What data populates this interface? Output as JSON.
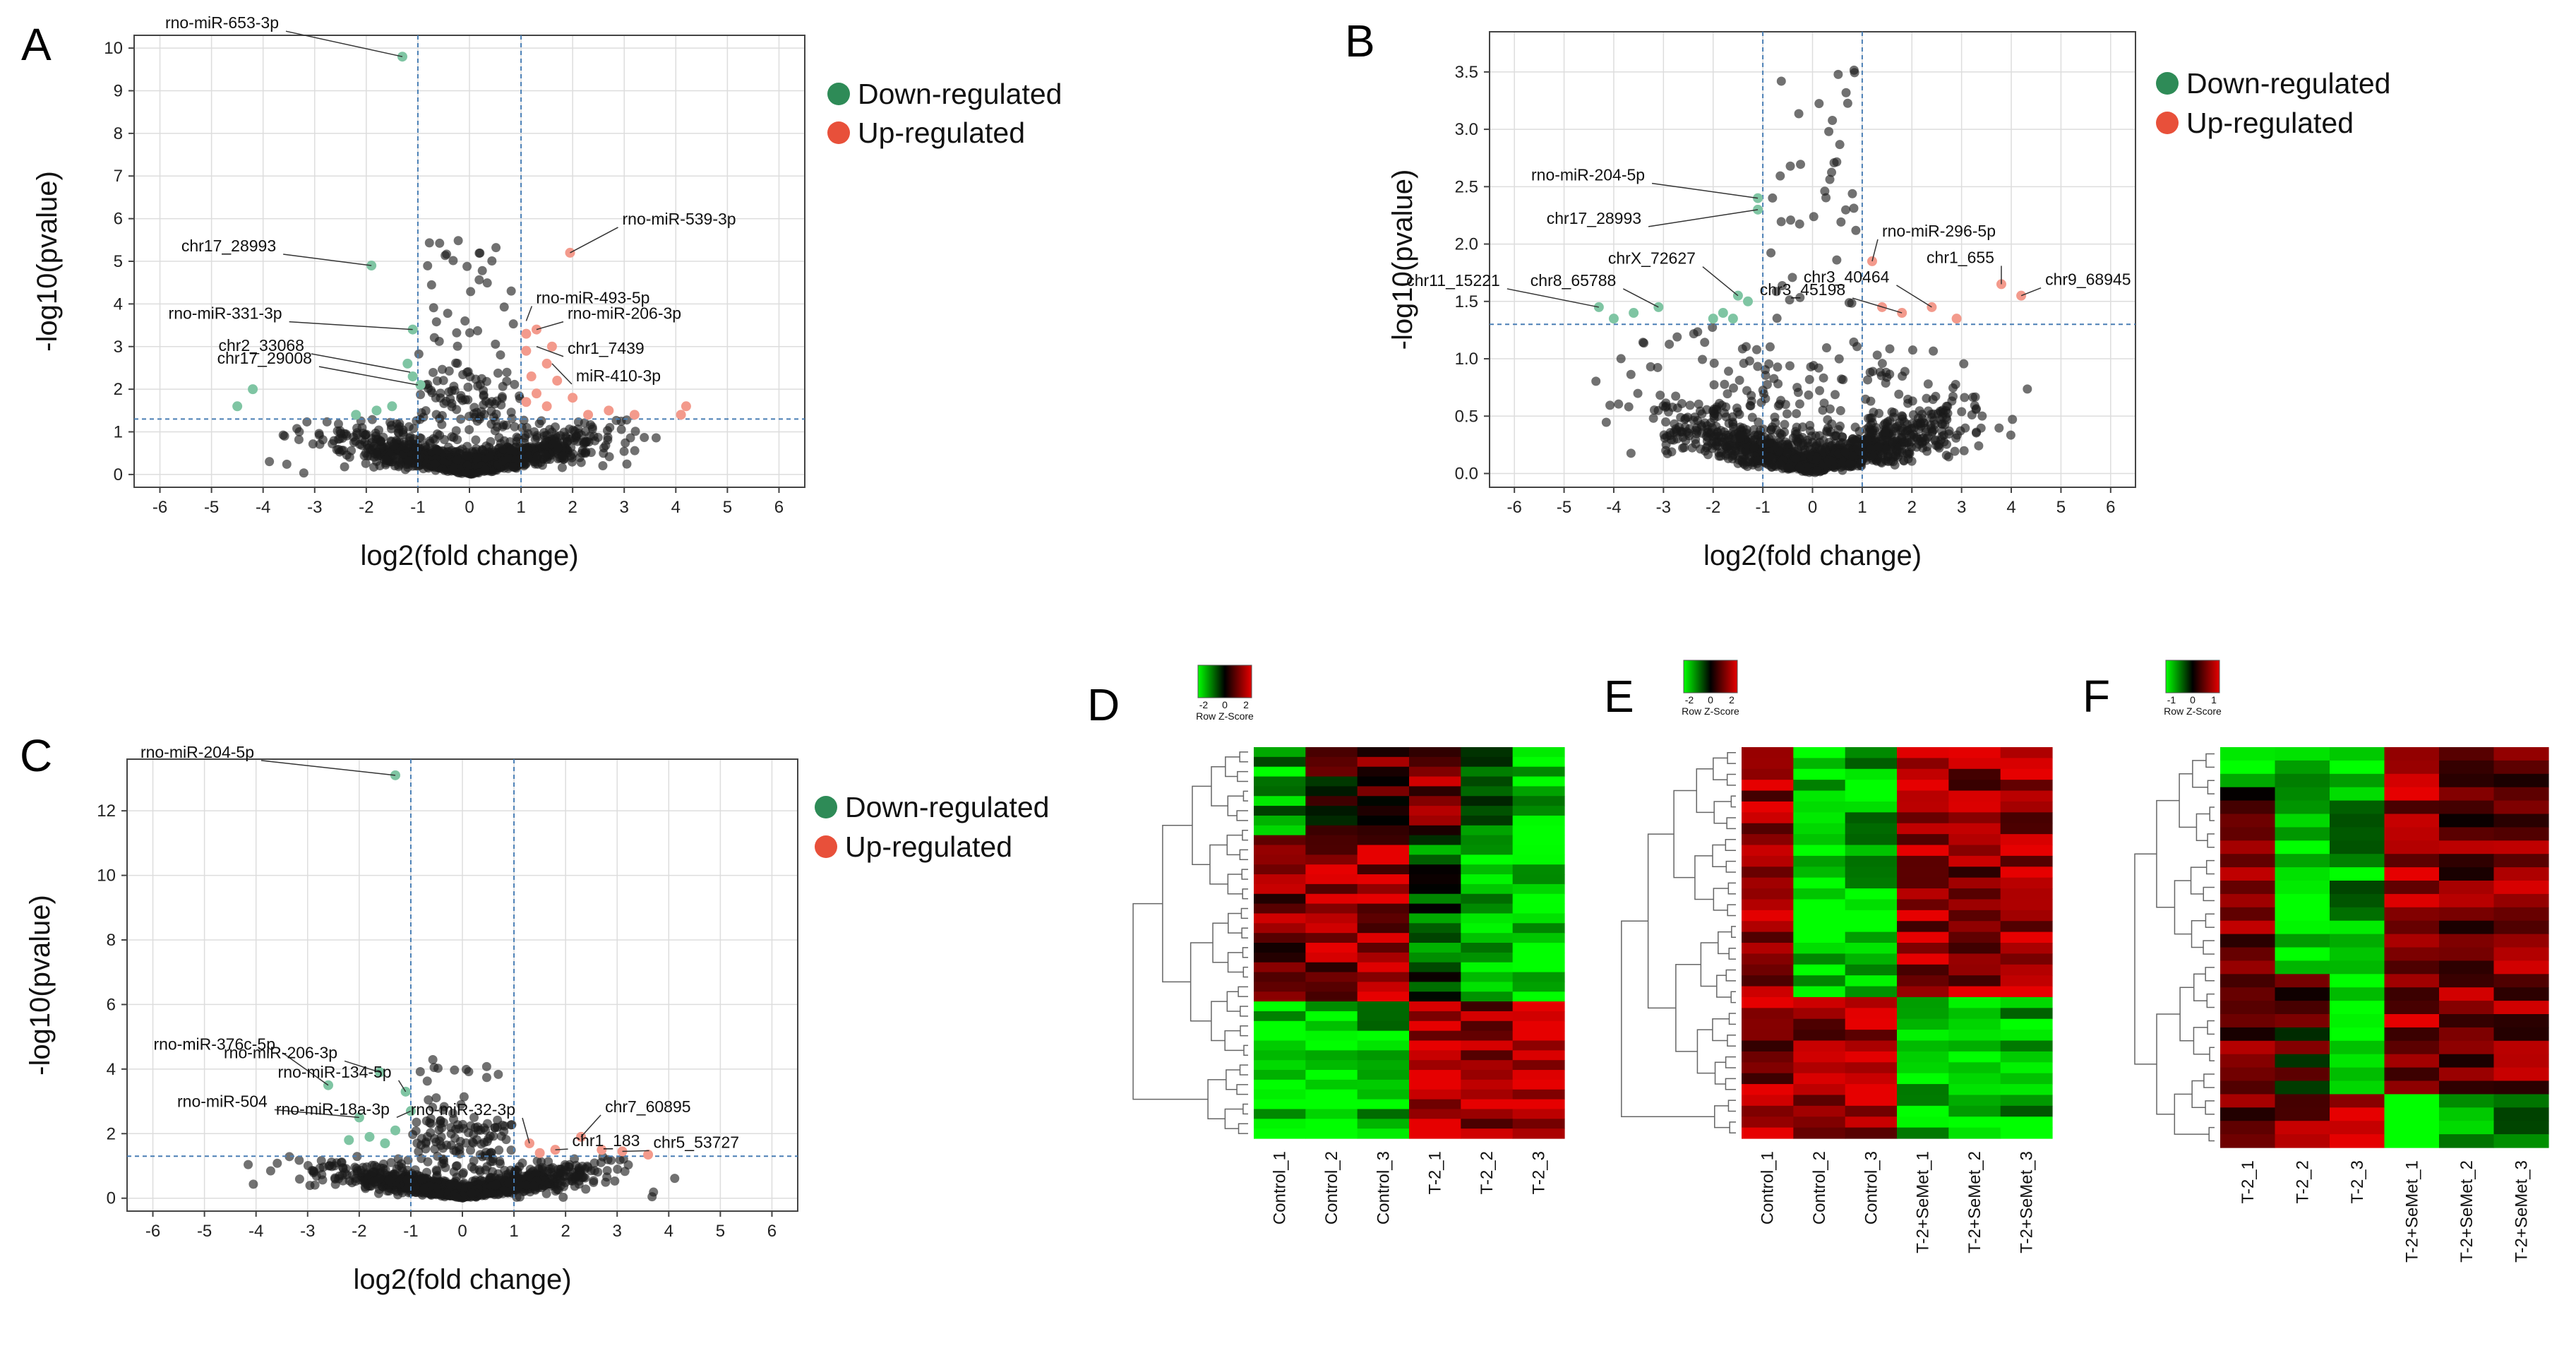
{
  "colors": {
    "down": "#2e8b57",
    "up": "#e8503a",
    "down_point": "#7fc5a3",
    "up_point": "#f39a8c",
    "neutral": "#1a1a1a",
    "grid": "#dddddd",
    "threshold": "#4a7fb5"
  },
  "legend": {
    "down": "Down-regulated",
    "up": "Up-regulated"
  },
  "chart_data": [
    {
      "panel": "A",
      "type": "scatter",
      "xlabel": "log2(fold change)",
      "ylabel": "-log10(pvalue)",
      "xlim": [
        -6.5,
        6.5
      ],
      "ylim": [
        -0.3,
        10.3
      ],
      "xticks": [
        -6,
        -5,
        -4,
        -3,
        -2,
        -1,
        0,
        1,
        2,
        3,
        4,
        5,
        6
      ],
      "yticks": [
        0,
        1,
        2,
        3,
        4,
        5,
        6,
        7,
        8,
        9,
        10
      ],
      "thresholds": {
        "x": [
          -1,
          1
        ],
        "y": 1.3
      },
      "down_points": [
        [
          -1.3,
          9.8
        ],
        [
          -1.9,
          4.9
        ],
        [
          -4.2,
          2.0
        ],
        [
          -4.5,
          1.6
        ],
        [
          -1.1,
          3.4
        ],
        [
          -1.2,
          2.6
        ],
        [
          -1.1,
          2.3
        ],
        [
          -0.95,
          2.1
        ],
        [
          -1.5,
          1.6
        ],
        [
          -1.8,
          1.5
        ],
        [
          -2.2,
          1.4
        ]
      ],
      "up_points": [
        [
          1.95,
          5.2
        ],
        [
          1.1,
          3.3
        ],
        [
          1.1,
          2.9
        ],
        [
          1.3,
          3.4
        ],
        [
          1.6,
          3.0
        ],
        [
          1.5,
          2.6
        ],
        [
          1.2,
          2.3
        ],
        [
          1.7,
          2.2
        ],
        [
          1.3,
          1.9
        ],
        [
          2.0,
          1.8
        ],
        [
          1.1,
          1.7
        ],
        [
          1.5,
          1.6
        ],
        [
          2.3,
          1.4
        ],
        [
          2.7,
          1.5
        ],
        [
          3.2,
          1.4
        ],
        [
          4.1,
          1.4
        ],
        [
          4.2,
          1.6
        ]
      ],
      "labels": [
        {
          "text": "rno-miR-653-3p",
          "x": -1.3,
          "y": 9.8
        },
        {
          "text": "chr17_28993",
          "x": -1.9,
          "y": 4.9
        },
        {
          "text": "rno-miR-331-3p",
          "x": -1.1,
          "y": 3.4
        },
        {
          "text": "chr2_33068",
          "x": -1.15,
          "y": 2.4
        },
        {
          "text": "chr17_29008",
          "x": -1.0,
          "y": 2.1
        },
        {
          "text": "rno-miR-539-3p",
          "x": 1.95,
          "y": 5.2
        },
        {
          "text": "rno-miR-493-5p",
          "x": 1.1,
          "y": 3.6
        },
        {
          "text": "rno-miR-206-3p",
          "x": 1.3,
          "y": 3.4
        },
        {
          "text": "chr1_7439",
          "x": 1.3,
          "y": 3.0
        },
        {
          "text": "miR-410-3p",
          "x": 1.6,
          "y": 2.6
        }
      ]
    },
    {
      "panel": "B",
      "type": "scatter",
      "xlabel": "log2(fold change)",
      "ylabel": "-log10(pvalue)",
      "xlim": [
        -6.5,
        6.5
      ],
      "ylim": [
        -0.12,
        3.85
      ],
      "xticks": [
        -6,
        -5,
        -4,
        -3,
        -2,
        -1,
        0,
        1,
        2,
        3,
        4,
        5,
        6
      ],
      "yticks": [
        0.0,
        0.5,
        1.0,
        1.5,
        2.0,
        2.5,
        3.0,
        3.5
      ],
      "thresholds": {
        "x": [
          -1,
          1
        ],
        "y": 1.3
      },
      "down_points": [
        [
          -1.1,
          2.4
        ],
        [
          -1.1,
          2.3
        ],
        [
          -4.3,
          1.45
        ],
        [
          -3.1,
          1.45
        ],
        [
          -4.0,
          1.35
        ],
        [
          -1.5,
          1.55
        ],
        [
          -1.3,
          1.5
        ],
        [
          -1.8,
          1.4
        ],
        [
          -1.6,
          1.35
        ],
        [
          -2.0,
          1.35
        ],
        [
          -3.6,
          1.4
        ]
      ],
      "up_points": [
        [
          1.2,
          1.85
        ],
        [
          1.8,
          1.4
        ],
        [
          2.4,
          1.45
        ],
        [
          3.8,
          1.65
        ],
        [
          4.2,
          1.55
        ],
        [
          2.9,
          1.35
        ],
        [
          1.4,
          1.45
        ]
      ],
      "labels": [
        {
          "text": "rno-miR-204-5p",
          "x": -1.1,
          "y": 2.4
        },
        {
          "text": "chr17_28993",
          "x": -1.1,
          "y": 2.3
        },
        {
          "text": "chr11_15221",
          "x": -4.3,
          "y": 1.45
        },
        {
          "text": "chr8_65788",
          "x": -3.1,
          "y": 1.45
        },
        {
          "text": "chrX_72627",
          "x": -1.5,
          "y": 1.55
        },
        {
          "text": "rno-miR-296-5p",
          "x": 1.2,
          "y": 1.85
        },
        {
          "text": "chr3_40464",
          "x": 2.4,
          "y": 1.45
        },
        {
          "text": "chr3_45198",
          "x": 1.8,
          "y": 1.4
        },
        {
          "text": "chr1_655",
          "x": 3.8,
          "y": 1.65
        },
        {
          "text": "chr9_68945",
          "x": 4.2,
          "y": 1.55
        }
      ]
    },
    {
      "panel": "C",
      "type": "scatter",
      "xlabel": "log2(fold change)",
      "ylabel": "-log10(pvalue)",
      "xlim": [
        -6.5,
        6.5
      ],
      "ylim": [
        -0.4,
        13.6
      ],
      "xticks": [
        -6,
        -5,
        -4,
        -3,
        -2,
        -1,
        0,
        1,
        2,
        3,
        4,
        5,
        6
      ],
      "yticks": [
        0,
        2,
        4,
        6,
        8,
        10,
        12
      ],
      "thresholds": {
        "x": [
          -1,
          1
        ],
        "y": 1.3
      },
      "down_points": [
        [
          -1.3,
          13.1
        ],
        [
          -2.6,
          3.5
        ],
        [
          -1.6,
          3.9
        ],
        [
          -1.1,
          3.3
        ],
        [
          -2.0,
          2.5
        ],
        [
          -1.8,
          1.9
        ],
        [
          -2.2,
          1.8
        ],
        [
          -1.5,
          1.7
        ],
        [
          -1.3,
          2.1
        ],
        [
          -1.0,
          2.7
        ]
      ],
      "up_points": [
        [
          1.3,
          1.7
        ],
        [
          2.3,
          1.9
        ],
        [
          3.1,
          1.45
        ],
        [
          1.8,
          1.5
        ],
        [
          3.6,
          1.35
        ],
        [
          1.5,
          1.4
        ],
        [
          2.7,
          1.5
        ]
      ],
      "labels": [
        {
          "text": "rno-miR-204-5p",
          "x": -1.3,
          "y": 13.1
        },
        {
          "text": "rno-miR-376c-5p",
          "x": -2.6,
          "y": 3.5
        },
        {
          "text": "rno-miR-206-3p",
          "x": -1.6,
          "y": 3.9
        },
        {
          "text": "rno-miR-134-5p",
          "x": -1.1,
          "y": 3.3
        },
        {
          "text": "rno-miR-504",
          "x": -2.0,
          "y": 2.5
        },
        {
          "text": "rno-miR-18a-3p",
          "x": -1.0,
          "y": 2.7
        },
        {
          "text": "rno-miR-32-3p",
          "x": 1.3,
          "y": 1.7
        },
        {
          "text": "chr7_60895",
          "x": 2.3,
          "y": 1.9
        },
        {
          "text": "chr1_183",
          "x": 1.8,
          "y": 1.5
        },
        {
          "text": "chr5_53727",
          "x": 3.1,
          "y": 1.45
        }
      ]
    },
    {
      "panel": "D",
      "type": "heatmap",
      "colorbar_title": "Row Z-Score",
      "colorbar_ticks": [
        "-2",
        "0",
        "2"
      ],
      "columns": [
        "Control_1",
        "Control_2",
        "Control_3",
        "T-2_1",
        "T-2_2",
        "T-2_3"
      ]
    },
    {
      "panel": "E",
      "type": "heatmap",
      "colorbar_title": "Row Z-Score",
      "colorbar_ticks": [
        "-2",
        "0",
        "2"
      ],
      "columns": [
        "Control_1",
        "Control_2",
        "Control_3",
        "T-2+SeMet_1",
        "T-2+SeMet_2",
        "T-2+SeMet_3"
      ]
    },
    {
      "panel": "F",
      "type": "heatmap",
      "colorbar_title": "Row Z-Score",
      "colorbar_ticks": [
        "-1",
        "0",
        "1"
      ],
      "columns": [
        "T-2_1",
        "T-2_2",
        "T-2_3",
        "T-2+SeMet_1",
        "T-2+SeMet_2",
        "T-2+SeMet_3"
      ]
    }
  ]
}
